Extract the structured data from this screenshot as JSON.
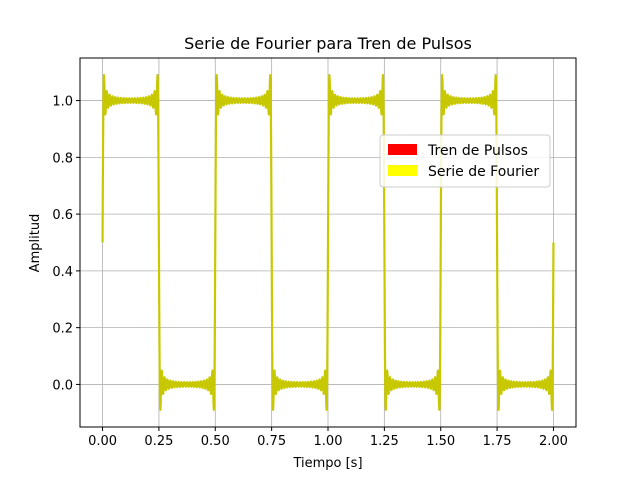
{
  "chart_data": {
    "type": "line",
    "title": "Serie de Fourier para Tren de Pulsos",
    "xlabel": "Tiempo [s]",
    "ylabel": "Amplitud",
    "xlim": [
      -0.1,
      2.1
    ],
    "ylim": [
      -0.15,
      1.15
    ],
    "xticks": [
      0.0,
      0.25,
      0.5,
      0.75,
      1.0,
      1.25,
      1.5,
      1.75,
      2.0
    ],
    "xtick_labels": [
      "0.00",
      "0.25",
      "0.50",
      "0.75",
      "1.00",
      "1.25",
      "1.50",
      "1.75",
      "2.00"
    ],
    "yticks": [
      0.0,
      0.2,
      0.4,
      0.6,
      0.8,
      1.0
    ],
    "ytick_labels": [
      "0.0",
      "0.2",
      "0.4",
      "0.6",
      "0.8",
      "1.0"
    ],
    "grid": true,
    "legend_position": "center-right",
    "series": [
      {
        "name": "Tren de Pulsos",
        "color": "#ff0000",
        "kind": "square-wave",
        "period": 0.5,
        "duty": 0.5,
        "high": 1.0,
        "low": 0.0,
        "x_range": [
          0.0,
          2.0
        ]
      },
      {
        "name": "Serie de Fourier",
        "color": "#ffff00",
        "kind": "fourier-partial-sum",
        "period": 0.5,
        "terms": 20,
        "x_range": [
          0.0,
          2.0
        ]
      }
    ]
  }
}
